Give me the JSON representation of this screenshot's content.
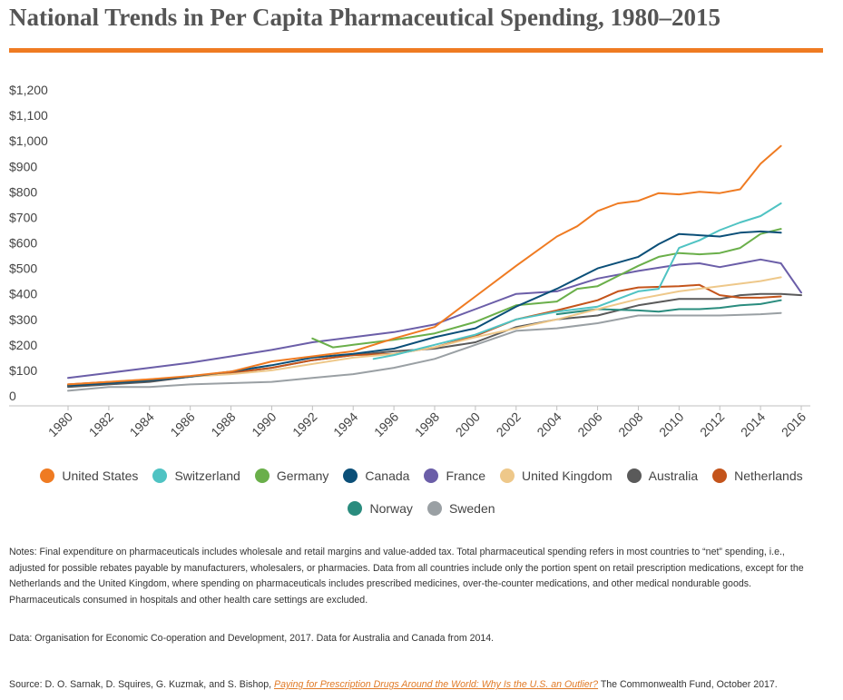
{
  "title": "National Trends in Per Capita Pharmaceutical Spending, 1980–2015",
  "accent_color": "#ef7b22",
  "chart_data": {
    "type": "line",
    "title": "National Trends in Per Capita Pharmaceutical Spending, 1980–2015",
    "xlabel": "",
    "ylabel": "",
    "xlim": [
      1980,
      2016
    ],
    "ylim": [
      0,
      1200
    ],
    "x_ticks": [
      "1980",
      "1982",
      "1984",
      "1986",
      "1988",
      "1990",
      "1992",
      "1994",
      "1996",
      "1998",
      "2000",
      "2002",
      "2004",
      "2006",
      "2008",
      "2010",
      "2012",
      "2014",
      "2016"
    ],
    "y_ticks": [
      "0",
      "$100",
      "$200",
      "$300",
      "$400",
      "$500",
      "$600",
      "$700",
      "$800",
      "$900",
      "$1,000",
      "$1,100",
      "$1,200"
    ],
    "grid": false,
    "legend_position": "bottom",
    "series": [
      {
        "name": "United States",
        "color": "#ef7b22",
        "x": [
          1980,
          1982,
          1984,
          1986,
          1988,
          1990,
          1992,
          1994,
          1996,
          1998,
          2000,
          2002,
          2004,
          2005,
          2006,
          2007,
          2008,
          2009,
          2010,
          2011,
          2012,
          2013,
          2014,
          2015
        ],
        "values": [
          45,
          55,
          65,
          78,
          95,
          135,
          155,
          175,
          225,
          270,
          390,
          510,
          625,
          665,
          725,
          755,
          765,
          795,
          790,
          800,
          795,
          810,
          910,
          980
        ]
      },
      {
        "name": "Switzerland",
        "color": "#4fc3c3",
        "x": [
          1995,
          1996,
          1998,
          2000,
          2002,
          2004,
          2006,
          2007,
          2008,
          2009,
          2010,
          2011,
          2012,
          2013,
          2014,
          2015
        ],
        "values": [
          145,
          160,
          200,
          240,
          300,
          330,
          350,
          380,
          410,
          420,
          580,
          610,
          650,
          680,
          705,
          755
        ]
      },
      {
        "name": "Germany",
        "color": "#6aaf4a",
        "x": [
          1992,
          1993,
          1994,
          1996,
          1998,
          2000,
          2002,
          2004,
          2005,
          2006,
          2007,
          2008,
          2009,
          2010,
          2011,
          2012,
          2013,
          2014,
          2015
        ],
        "values": [
          225,
          190,
          200,
          220,
          245,
          290,
          355,
          370,
          420,
          430,
          470,
          510,
          545,
          560,
          555,
          560,
          580,
          635,
          655
        ]
      },
      {
        "name": "Canada",
        "color": "#0b4f78",
        "x": [
          1980,
          1982,
          1984,
          1986,
          1988,
          1990,
          1992,
          1994,
          1996,
          1998,
          2000,
          2002,
          2004,
          2006,
          2008,
          2009,
          2010,
          2011,
          2012,
          2013,
          2014,
          2015
        ],
        "values": [
          40,
          50,
          60,
          75,
          95,
          120,
          150,
          165,
          185,
          230,
          265,
          350,
          420,
          500,
          545,
          595,
          635,
          630,
          625,
          640,
          645,
          640
        ]
      },
      {
        "name": "France",
        "color": "#6b5ea8",
        "x": [
          1980,
          1982,
          1984,
          1986,
          1988,
          1990,
          1992,
          1994,
          1996,
          1998,
          2000,
          2002,
          2004,
          2006,
          2008,
          2010,
          2011,
          2012,
          2013,
          2014,
          2015,
          2016
        ],
        "values": [
          70,
          90,
          110,
          130,
          155,
          180,
          210,
          230,
          250,
          280,
          340,
          400,
          410,
          460,
          490,
          515,
          520,
          505,
          520,
          535,
          520,
          405
        ]
      },
      {
        "name": "United Kingdom",
        "color": "#eec88a",
        "x": [
          1980,
          1982,
          1984,
          1986,
          1988,
          1990,
          1992,
          1994,
          1996,
          1998,
          2000,
          2002,
          2004,
          2006,
          2008,
          2010,
          2012,
          2014,
          2015
        ],
        "values": [
          40,
          55,
          65,
          75,
          85,
          100,
          125,
          150,
          165,
          190,
          230,
          265,
          300,
          340,
          380,
          410,
          430,
          450,
          465
        ]
      },
      {
        "name": "Australia",
        "color": "#5a5a5a",
        "x": [
          1980,
          1982,
          1984,
          1986,
          1988,
          1990,
          1992,
          1994,
          1996,
          1998,
          2000,
          2002,
          2004,
          2006,
          2008,
          2010,
          2012,
          2013,
          2014,
          2015,
          2016
        ],
        "values": [
          35,
          45,
          55,
          75,
          90,
          110,
          140,
          160,
          175,
          185,
          210,
          270,
          300,
          315,
          355,
          380,
          380,
          395,
          400,
          400,
          395
        ]
      },
      {
        "name": "Netherlands",
        "color": "#c4541b",
        "x": [
          1980,
          1982,
          1984,
          1986,
          1988,
          1990,
          1992,
          1994,
          1996,
          1998,
          2000,
          2002,
          2004,
          2006,
          2007,
          2008,
          2010,
          2011,
          2012,
          2013,
          2014,
          2015
        ],
        "values": [
          45,
          55,
          60,
          75,
          90,
          110,
          140,
          160,
          165,
          190,
          235,
          300,
          335,
          375,
          410,
          425,
          430,
          435,
          395,
          385,
          385,
          390
        ]
      },
      {
        "name": "Norway",
        "color": "#2a8c7e",
        "x": [
          2004,
          2006,
          2008,
          2009,
          2010,
          2011,
          2012,
          2013,
          2014,
          2015
        ],
        "values": [
          320,
          340,
          335,
          330,
          340,
          340,
          345,
          355,
          360,
          375
        ]
      },
      {
        "name": "Sweden",
        "color": "#9aa0a4",
        "x": [
          1980,
          1982,
          1984,
          1986,
          1988,
          1990,
          1992,
          1994,
          1996,
          1998,
          2000,
          2002,
          2004,
          2006,
          2008,
          2010,
          2012,
          2014,
          2015
        ],
        "values": [
          20,
          35,
          35,
          45,
          50,
          55,
          70,
          85,
          110,
          145,
          200,
          255,
          265,
          285,
          315,
          315,
          315,
          320,
          325
        ]
      }
    ]
  },
  "notes": "Notes: Final expenditure on pharmaceuticals includes wholesale and retail margins and value-added tax. Total pharmaceutical spending refers in most countries to “net” spending, i.e., adjusted for possible rebates payable by manufacturers, wholesalers, or pharmacies. Data from all countries include only the portion spent on retail prescription medications, except for the Netherlands and the United Kingdom, where spending on pharmaceuticals includes prescribed medicines, over-the-counter medications, and other medical nondurable goods. Pharmaceuticals consumed in hospitals and other health care settings are excluded.",
  "data_note": "Data: Organisation for Economic Co-operation and Development, 2017. Data for Australia and Canada from 2014.",
  "source": {
    "prefix": "Source: D. O. Sarnak, D. Squires, G. Kuzmak, and S. Bishop, ",
    "link_text": "Paying for Prescription Drugs Around the World: Why Is the U.S. an Outlier?",
    "suffix": " The Commonwealth Fund, October 2017."
  }
}
